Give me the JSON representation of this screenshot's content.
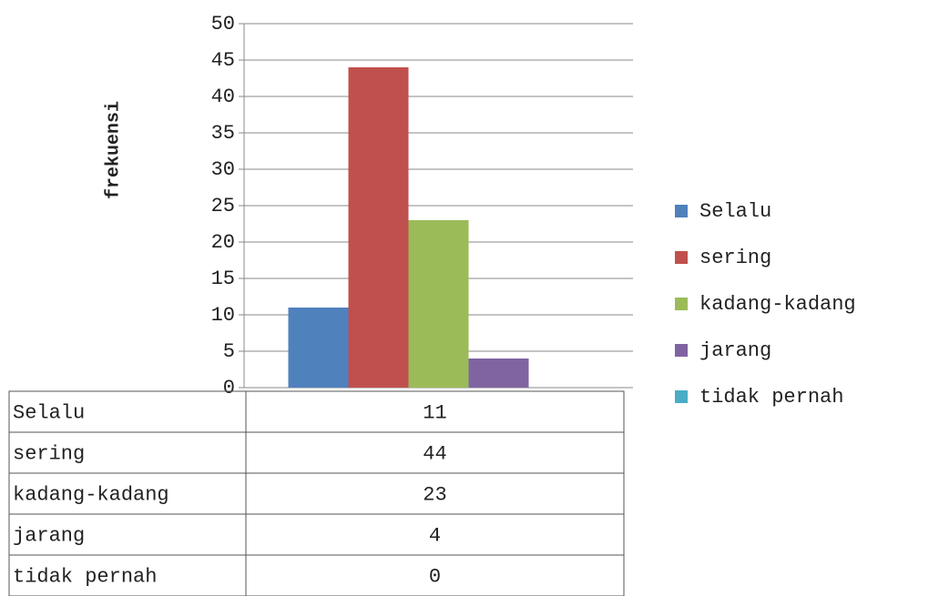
{
  "chart_data": {
    "type": "bar",
    "y_label": "frekuensi",
    "categories": [
      null
    ],
    "series": [
      {
        "name": "Selalu",
        "color": "#4f81bd",
        "values": [
          11
        ]
      },
      {
        "name": "sering",
        "color": "#c0504d",
        "values": [
          44
        ]
      },
      {
        "name": "kadang-kadang",
        "color": "#9bbb59",
        "values": [
          23
        ]
      },
      {
        "name": "jarang",
        "color": "#8064a2",
        "values": [
          4
        ]
      },
      {
        "name": "tidak pernah",
        "color": "#4bacc6",
        "values": [
          0
        ]
      }
    ],
    "ylim": [
      0,
      50
    ],
    "yticks": [
      0,
      5,
      10,
      15,
      20,
      25,
      30,
      35,
      40,
      45,
      50
    ],
    "grid": true,
    "legend": "right",
    "data_table": true
  }
}
